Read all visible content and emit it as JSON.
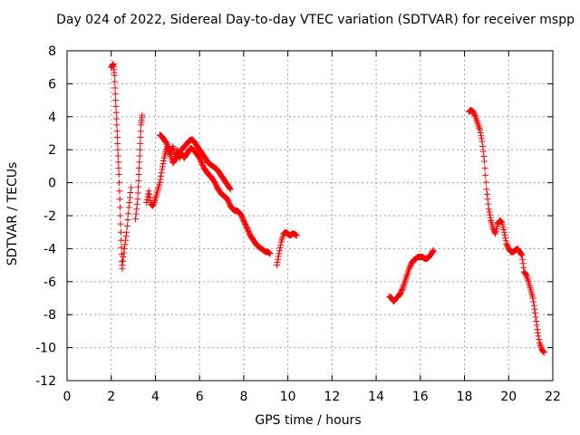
{
  "chart_data": {
    "type": "scatter",
    "title": "Day 024 of 2022, Sidereal Day-to-day VTEC variation (SDTVAR) for receiver mspp",
    "xlabel": "GPS time / hours",
    "ylabel": "SDTVAR / TECUs",
    "xlim": [
      0,
      22
    ],
    "ylim": [
      -12,
      8
    ],
    "xticks": [
      0,
      2,
      4,
      6,
      8,
      10,
      12,
      14,
      16,
      18,
      20,
      22
    ],
    "yticks": [
      -12,
      -10,
      -8,
      -6,
      -4,
      -2,
      0,
      2,
      4,
      6,
      8
    ],
    "grid": true,
    "marker": "+",
    "color": "#ff0000",
    "series": [
      {
        "name": "SDTVAR",
        "segments": [
          [
            [
              2.0,
              7.0
            ],
            [
              2.1,
              7.2
            ],
            [
              2.15,
              6.5
            ],
            [
              2.2,
              5.0
            ],
            [
              2.25,
              3.5
            ],
            [
              2.3,
              2.0
            ],
            [
              2.35,
              0.5
            ],
            [
              2.4,
              -1.5
            ],
            [
              2.45,
              -3.5
            ],
            [
              2.5,
              -5.2
            ]
          ],
          [
            [
              2.5,
              -5.0
            ],
            [
              2.6,
              -4.0
            ],
            [
              2.7,
              -3.0
            ],
            [
              2.8,
              -1.5
            ],
            [
              2.9,
              -0.3
            ]
          ],
          [
            [
              3.1,
              -2.2
            ],
            [
              3.2,
              -1.0
            ],
            [
              3.25,
              0.5
            ],
            [
              3.3,
              2.0
            ],
            [
              3.35,
              3.5
            ],
            [
              3.4,
              4.1
            ]
          ],
          [
            [
              3.6,
              -1.2
            ],
            [
              3.7,
              -0.5
            ],
            [
              3.8,
              -1.3
            ],
            [
              3.9,
              -1.4
            ],
            [
              4.0,
              -1.0
            ],
            [
              4.1,
              -0.5
            ],
            [
              4.2,
              0.0
            ],
            [
              4.3,
              0.8
            ],
            [
              4.4,
              1.5
            ],
            [
              4.5,
              2.0
            ],
            [
              4.6,
              2.2
            ],
            [
              4.7,
              1.8
            ],
            [
              4.8,
              2.2
            ],
            [
              4.9,
              1.6
            ],
            [
              5.0,
              2.0
            ],
            [
              5.1,
              1.5
            ],
            [
              5.2,
              1.8
            ],
            [
              5.3,
              1.5
            ],
            [
              5.4,
              1.7
            ],
            [
              5.5,
              1.9
            ],
            [
              5.6,
              2.1
            ],
            [
              5.7,
              2.0
            ],
            [
              5.8,
              1.9
            ],
            [
              5.9,
              1.7
            ],
            [
              6.0,
              1.5
            ],
            [
              6.1,
              1.2
            ],
            [
              6.2,
              0.9
            ],
            [
              6.3,
              0.7
            ],
            [
              6.4,
              0.5
            ],
            [
              6.5,
              0.4
            ],
            [
              6.6,
              0.2
            ],
            [
              6.7,
              0.0
            ],
            [
              6.8,
              -0.3
            ],
            [
              6.9,
              -0.5
            ],
            [
              7.0,
              -0.7
            ],
            [
              7.1,
              -0.8
            ],
            [
              7.2,
              -0.9
            ],
            [
              7.3,
              -1.1
            ],
            [
              7.4,
              -1.4
            ],
            [
              7.5,
              -1.6
            ],
            [
              7.6,
              -1.7
            ],
            [
              7.7,
              -1.7
            ],
            [
              7.8,
              -1.8
            ],
            [
              7.9,
              -2.0
            ],
            [
              8.0,
              -2.3
            ],
            [
              8.1,
              -2.6
            ],
            [
              8.2,
              -2.9
            ],
            [
              8.3,
              -3.2
            ],
            [
              8.4,
              -3.4
            ],
            [
              8.5,
              -3.6
            ],
            [
              8.6,
              -3.8
            ],
            [
              8.7,
              -3.9
            ],
            [
              8.8,
              -4.0
            ],
            [
              8.9,
              -4.1
            ],
            [
              9.0,
              -4.2
            ],
            [
              9.1,
              -4.2
            ],
            [
              9.2,
              -4.3
            ]
          ],
          [
            [
              4.2,
              2.9
            ],
            [
              4.3,
              2.8
            ],
            [
              4.4,
              2.6
            ],
            [
              4.5,
              2.4
            ],
            [
              4.6,
              2.0
            ],
            [
              4.7,
              1.6
            ],
            [
              4.8,
              1.2
            ],
            [
              4.9,
              1.4
            ],
            [
              5.0,
              1.6
            ],
            [
              5.1,
              1.9
            ],
            [
              5.2,
              2.0
            ],
            [
              5.3,
              2.2
            ],
            [
              5.4,
              2.3
            ],
            [
              5.5,
              2.5
            ],
            [
              5.6,
              2.6
            ],
            [
              5.7,
              2.6
            ],
            [
              5.8,
              2.4
            ],
            [
              5.9,
              2.2
            ],
            [
              6.0,
              2.0
            ],
            [
              6.1,
              1.8
            ],
            [
              6.2,
              1.6
            ],
            [
              6.3,
              1.4
            ],
            [
              6.4,
              1.2
            ],
            [
              6.5,
              1.1
            ],
            [
              6.6,
              1.0
            ],
            [
              6.7,
              0.9
            ],
            [
              6.8,
              0.8
            ],
            [
              6.9,
              0.6
            ],
            [
              7.0,
              0.4
            ],
            [
              7.1,
              0.2
            ],
            [
              7.2,
              0.0
            ],
            [
              7.3,
              -0.2
            ],
            [
              7.4,
              -0.4
            ]
          ],
          [
            [
              9.5,
              -5.0
            ],
            [
              9.6,
              -4.3
            ],
            [
              9.7,
              -3.6
            ],
            [
              9.8,
              -3.1
            ],
            [
              9.9,
              -3.0
            ],
            [
              10.0,
              -3.1
            ],
            [
              10.1,
              -3.2
            ],
            [
              10.2,
              -3.1
            ],
            [
              10.3,
              -3.1
            ],
            [
              10.4,
              -3.2
            ]
          ],
          [
            [
              14.6,
              -6.9
            ],
            [
              14.7,
              -7.0
            ],
            [
              14.8,
              -7.2
            ],
            [
              14.9,
              -7.0
            ],
            [
              15.0,
              -6.9
            ],
            [
              15.1,
              -6.7
            ],
            [
              15.2,
              -6.4
            ],
            [
              15.3,
              -6.0
            ],
            [
              15.4,
              -5.6
            ],
            [
              15.5,
              -5.2
            ],
            [
              15.6,
              -4.9
            ],
            [
              15.7,
              -4.7
            ],
            [
              15.8,
              -4.6
            ],
            [
              15.9,
              -4.5
            ],
            [
              16.0,
              -4.5
            ],
            [
              16.1,
              -4.5
            ],
            [
              16.2,
              -4.6
            ],
            [
              16.3,
              -4.6
            ],
            [
              16.4,
              -4.5
            ],
            [
              16.5,
              -4.3
            ],
            [
              16.6,
              -4.1
            ]
          ],
          [
            [
              18.2,
              4.3
            ],
            [
              18.3,
              4.4
            ],
            [
              18.4,
              4.3
            ],
            [
              18.5,
              4.0
            ],
            [
              18.6,
              3.6
            ],
            [
              18.7,
              3.2
            ],
            [
              18.8,
              2.5
            ],
            [
              18.9,
              1.3
            ],
            [
              19.0,
              -0.4
            ],
            [
              19.1,
              -1.6
            ],
            [
              19.2,
              -2.3
            ],
            [
              19.3,
              -2.8
            ],
            [
              19.4,
              -3.1
            ],
            [
              19.5,
              -2.5
            ],
            [
              19.6,
              -2.3
            ],
            [
              19.7,
              -2.4
            ],
            [
              19.8,
              -3.0
            ],
            [
              19.9,
              -3.7
            ],
            [
              20.0,
              -4.0
            ],
            [
              20.1,
              -4.2
            ],
            [
              20.2,
              -4.2
            ],
            [
              20.3,
              -4.1
            ],
            [
              20.4,
              -4.0
            ],
            [
              20.5,
              -4.2
            ],
            [
              20.6,
              -4.4
            ],
            [
              20.7,
              -5.4
            ],
            [
              20.8,
              -5.6
            ],
            [
              20.9,
              -6.0
            ],
            [
              21.0,
              -6.5
            ],
            [
              21.1,
              -7.0
            ],
            [
              21.2,
              -7.9
            ],
            [
              21.3,
              -8.9
            ],
            [
              21.4,
              -9.7
            ],
            [
              21.5,
              -10.1
            ],
            [
              21.6,
              -10.3
            ]
          ]
        ]
      }
    ]
  }
}
